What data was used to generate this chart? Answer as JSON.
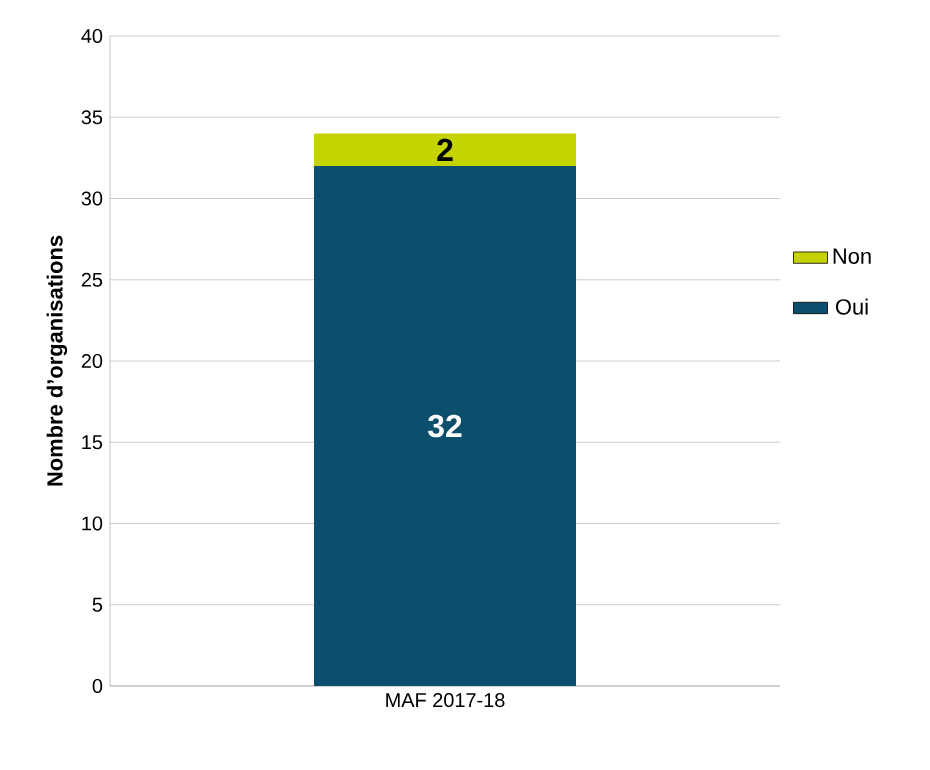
{
  "chart_data": {
    "type": "bar",
    "stacked": true,
    "ylabel": "Nombre d’organisations",
    "categories": [
      "MAF 2017-18"
    ],
    "series": [
      {
        "name": "Oui",
        "color": "#0b4f6c",
        "values": [
          32
        ],
        "value_labels": [
          "32"
        ]
      },
      {
        "name": "Non",
        "color": "#c5d300",
        "values": [
          2
        ],
        "value_labels": [
          "2"
        ]
      }
    ],
    "ylim": [
      0,
      40
    ],
    "yticks": [
      0,
      5,
      10,
      15,
      20,
      25,
      30,
      35,
      40
    ],
    "grid": "y",
    "legend": "right"
  }
}
